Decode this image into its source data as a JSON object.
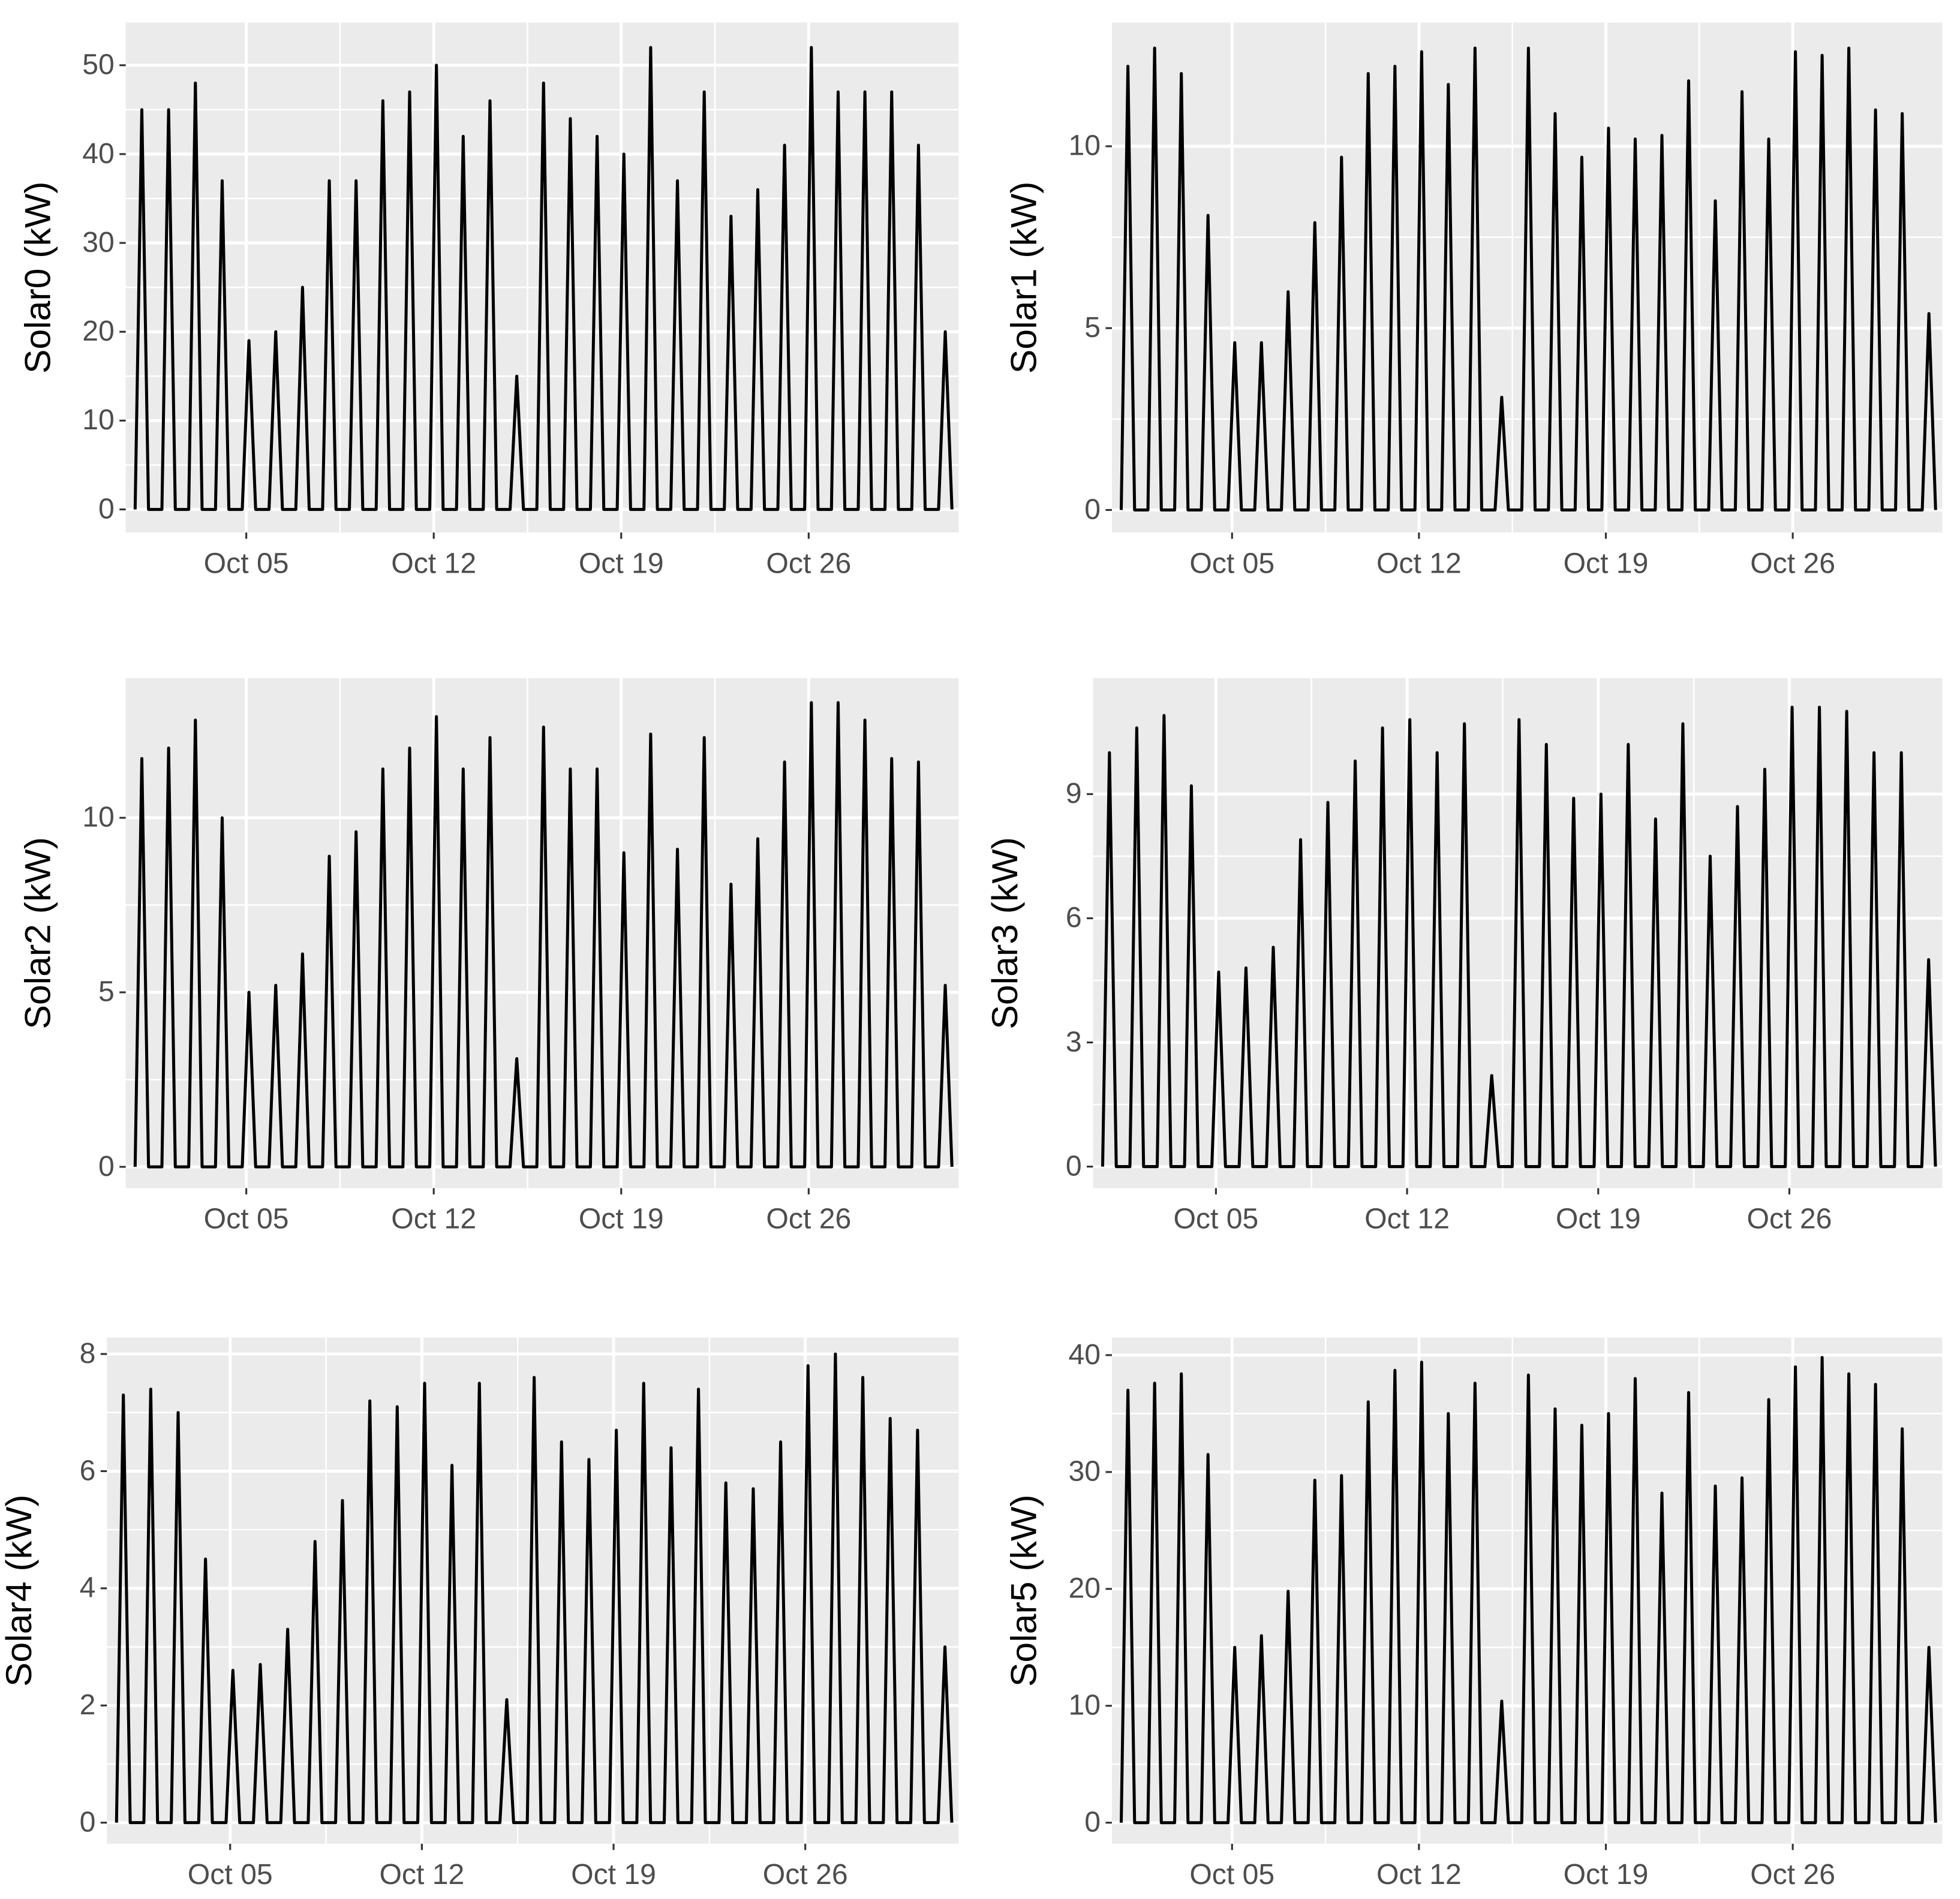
{
  "chart_data": [
    {
      "type": "line",
      "ylabel": "Solar0 (kW)",
      "color": "#000000",
      "grid": true,
      "xlim": [
        0.5,
        31.6
      ],
      "xticks": [
        {
          "value": 5,
          "label": "Oct 05"
        },
        {
          "value": 12,
          "label": "Oct 12"
        },
        {
          "value": 19,
          "label": "Oct 19"
        },
        {
          "value": 26,
          "label": "Oct 26"
        }
      ],
      "ylim": [
        -2.6,
        54.8
      ],
      "yticks": [
        0,
        10,
        20,
        30,
        40,
        50
      ],
      "x": [
        0.85,
        1.1,
        1.35,
        1.85,
        2.1,
        2.35,
        2.85,
        3.1,
        3.35,
        3.85,
        4.1,
        4.35,
        4.85,
        5.1,
        5.35,
        5.85,
        6.1,
        6.35,
        6.85,
        7.1,
        7.35,
        7.85,
        8.1,
        8.35,
        8.85,
        9.1,
        9.35,
        9.85,
        10.1,
        10.35,
        10.85,
        11.1,
        11.35,
        11.85,
        12.1,
        12.35,
        12.85,
        13.1,
        13.35,
        13.85,
        14.1,
        14.35,
        14.85,
        15.1,
        15.35,
        15.85,
        16.1,
        16.35,
        16.85,
        17.1,
        17.35,
        17.85,
        18.1,
        18.35,
        18.85,
        19.1,
        19.35,
        19.85,
        20.1,
        20.35,
        20.85,
        21.1,
        21.35,
        21.85,
        22.1,
        22.35,
        22.85,
        23.1,
        23.35,
        23.85,
        24.1,
        24.35,
        24.85,
        25.1,
        25.35,
        25.85,
        26.1,
        26.35,
        26.85,
        27.1,
        27.35,
        27.85,
        28.1,
        28.35,
        28.85,
        29.1,
        29.35,
        29.85,
        30.1,
        30.35,
        30.85,
        31.1,
        31.35
      ],
      "values": [
        0,
        45,
        0,
        0,
        45,
        0,
        0,
        48,
        0,
        0,
        37,
        0,
        0,
        19,
        0,
        0,
        20,
        0,
        0,
        25,
        0,
        0,
        37,
        0,
        0,
        37,
        0,
        0,
        46,
        0,
        0,
        47,
        0,
        0,
        50,
        0,
        0,
        42,
        0,
        0,
        46,
        0,
        0,
        15,
        0,
        0,
        48,
        0,
        0,
        44,
        0,
        0,
        42,
        0,
        0,
        40,
        0,
        0,
        52,
        0,
        0,
        37,
        0,
        0,
        47,
        0,
        0,
        33,
        0,
        0,
        36,
        0,
        0,
        41,
        0,
        0,
        52,
        0,
        0,
        47,
        0,
        0,
        47,
        0,
        0,
        47,
        0,
        0,
        41,
        0,
        0,
        20,
        0
      ]
    },
    {
      "type": "line",
      "ylabel": "Solar1 (kW)",
      "color": "#000000",
      "grid": true,
      "xlim": [
        0.5,
        31.6
      ],
      "xticks": [
        {
          "value": 5,
          "label": "Oct 05"
        },
        {
          "value": 12,
          "label": "Oct 12"
        },
        {
          "value": 19,
          "label": "Oct 19"
        },
        {
          "value": 26,
          "label": "Oct 26"
        }
      ],
      "ylim": [
        -0.62,
        13.4
      ],
      "yticks": [
        0,
        5,
        10
      ],
      "x": [
        0.85,
        1.1,
        1.35,
        1.85,
        2.1,
        2.35,
        2.85,
        3.1,
        3.35,
        3.85,
        4.1,
        4.35,
        4.85,
        5.1,
        5.35,
        5.85,
        6.1,
        6.35,
        6.85,
        7.1,
        7.35,
        7.85,
        8.1,
        8.35,
        8.85,
        9.1,
        9.35,
        9.85,
        10.1,
        10.35,
        10.85,
        11.1,
        11.35,
        11.85,
        12.1,
        12.35,
        12.85,
        13.1,
        13.35,
        13.85,
        14.1,
        14.35,
        14.85,
        15.1,
        15.35,
        15.85,
        16.1,
        16.35,
        16.85,
        17.1,
        17.35,
        17.85,
        18.1,
        18.35,
        18.85,
        19.1,
        19.35,
        19.85,
        20.1,
        20.35,
        20.85,
        21.1,
        21.35,
        21.85,
        22.1,
        22.35,
        22.85,
        23.1,
        23.35,
        23.85,
        24.1,
        24.35,
        24.85,
        25.1,
        25.35,
        25.85,
        26.1,
        26.35,
        26.85,
        27.1,
        27.35,
        27.85,
        28.1,
        28.35,
        28.85,
        29.1,
        29.35,
        29.85,
        30.1,
        30.35,
        30.85,
        31.1,
        31.35
      ],
      "values": [
        0,
        12.2,
        0,
        0,
        12.7,
        0,
        0,
        12.0,
        0,
        0,
        8.1,
        0,
        0,
        4.6,
        0,
        0,
        4.6,
        0,
        0,
        6.0,
        0,
        0,
        7.9,
        0,
        0,
        9.7,
        0,
        0,
        12.0,
        0,
        0,
        12.2,
        0,
        0,
        12.6,
        0,
        0,
        11.7,
        0,
        0,
        12.7,
        0,
        0,
        3.1,
        0,
        0,
        12.7,
        0,
        0,
        10.9,
        0,
        0,
        9.7,
        0,
        0,
        10.5,
        0,
        0,
        10.2,
        0,
        0,
        10.3,
        0,
        0,
        11.8,
        0,
        0,
        8.5,
        0,
        0,
        11.5,
        0,
        0,
        10.2,
        0,
        0,
        12.6,
        0,
        0,
        12.5,
        0,
        0,
        12.7,
        0,
        0,
        11.0,
        0,
        0,
        10.9,
        0,
        0,
        5.4,
        0
      ]
    },
    {
      "type": "line",
      "ylabel": "Solar2 (kW)",
      "color": "#000000",
      "grid": true,
      "xlim": [
        0.5,
        31.6
      ],
      "xticks": [
        {
          "value": 5,
          "label": "Oct 05"
        },
        {
          "value": 12,
          "label": "Oct 12"
        },
        {
          "value": 19,
          "label": "Oct 19"
        },
        {
          "value": 26,
          "label": "Oct 26"
        }
      ],
      "ylim": [
        -0.61,
        14.0
      ],
      "yticks": [
        0,
        5,
        10
      ],
      "x": [
        0.85,
        1.1,
        1.35,
        1.85,
        2.1,
        2.35,
        2.85,
        3.1,
        3.35,
        3.85,
        4.1,
        4.35,
        4.85,
        5.1,
        5.35,
        5.85,
        6.1,
        6.35,
        6.85,
        7.1,
        7.35,
        7.85,
        8.1,
        8.35,
        8.85,
        9.1,
        9.35,
        9.85,
        10.1,
        10.35,
        10.85,
        11.1,
        11.35,
        11.85,
        12.1,
        12.35,
        12.85,
        13.1,
        13.35,
        13.85,
        14.1,
        14.35,
        14.85,
        15.1,
        15.35,
        15.85,
        16.1,
        16.35,
        16.85,
        17.1,
        17.35,
        17.85,
        18.1,
        18.35,
        18.85,
        19.1,
        19.35,
        19.85,
        20.1,
        20.35,
        20.85,
        21.1,
        21.35,
        21.85,
        22.1,
        22.35,
        22.85,
        23.1,
        23.35,
        23.85,
        24.1,
        24.35,
        24.85,
        25.1,
        25.35,
        25.85,
        26.1,
        26.35,
        26.85,
        27.1,
        27.35,
        27.85,
        28.1,
        28.35,
        28.85,
        29.1,
        29.35,
        29.85,
        30.1,
        30.35,
        30.85,
        31.1,
        31.35
      ],
      "values": [
        0,
        11.7,
        0,
        0,
        12.0,
        0,
        0,
        12.8,
        0,
        0,
        10.0,
        0,
        0,
        5.0,
        0,
        0,
        5.2,
        0,
        0,
        6.1,
        0,
        0,
        8.9,
        0,
        0,
        9.6,
        0,
        0,
        11.4,
        0,
        0,
        12.0,
        0,
        0,
        12.9,
        0,
        0,
        11.4,
        0,
        0,
        12.3,
        0,
        0,
        3.1,
        0,
        0,
        12.6,
        0,
        0,
        11.4,
        0,
        0,
        11.4,
        0,
        0,
        9.0,
        0,
        0,
        12.4,
        0,
        0,
        9.1,
        0,
        0,
        12.3,
        0,
        0,
        8.1,
        0,
        0,
        9.4,
        0,
        0,
        11.6,
        0,
        0,
        13.3,
        0,
        0,
        13.3,
        0,
        0,
        12.8,
        0,
        0,
        11.7,
        0,
        0,
        11.6,
        0,
        0,
        5.2,
        0
      ]
    },
    {
      "type": "line",
      "ylabel": "Solar3 (kW)",
      "color": "#000000",
      "grid": true,
      "xlim": [
        0.5,
        31.6
      ],
      "xticks": [
        {
          "value": 5,
          "label": "Oct 05"
        },
        {
          "value": 12,
          "label": "Oct 12"
        },
        {
          "value": 19,
          "label": "Oct 19"
        },
        {
          "value": 26,
          "label": "Oct 26"
        }
      ],
      "ylim": [
        -0.52,
        11.8
      ],
      "yticks": [
        0,
        3,
        6,
        9
      ],
      "x": [
        0.85,
        1.1,
        1.35,
        1.85,
        2.1,
        2.35,
        2.85,
        3.1,
        3.35,
        3.85,
        4.1,
        4.35,
        4.85,
        5.1,
        5.35,
        5.85,
        6.1,
        6.35,
        6.85,
        7.1,
        7.35,
        7.85,
        8.1,
        8.35,
        8.85,
        9.1,
        9.35,
        9.85,
        10.1,
        10.35,
        10.85,
        11.1,
        11.35,
        11.85,
        12.1,
        12.35,
        12.85,
        13.1,
        13.35,
        13.85,
        14.1,
        14.35,
        14.85,
        15.1,
        15.35,
        15.85,
        16.1,
        16.35,
        16.85,
        17.1,
        17.35,
        17.85,
        18.1,
        18.35,
        18.85,
        19.1,
        19.35,
        19.85,
        20.1,
        20.35,
        20.85,
        21.1,
        21.35,
        21.85,
        22.1,
        22.35,
        22.85,
        23.1,
        23.35,
        23.85,
        24.1,
        24.35,
        24.85,
        25.1,
        25.35,
        25.85,
        26.1,
        26.35,
        26.85,
        27.1,
        27.35,
        27.85,
        28.1,
        28.35,
        28.85,
        29.1,
        29.35,
        29.85,
        30.1,
        30.35,
        30.85,
        31.1,
        31.35
      ],
      "values": [
        0,
        10.0,
        0,
        0,
        10.6,
        0,
        0,
        10.9,
        0,
        0,
        9.2,
        0,
        0,
        4.7,
        0,
        0,
        4.8,
        0,
        0,
        5.3,
        0,
        0,
        7.9,
        0,
        0,
        8.8,
        0,
        0,
        9.8,
        0,
        0,
        10.6,
        0,
        0,
        10.8,
        0,
        0,
        10.0,
        0,
        0,
        10.7,
        0,
        0,
        2.2,
        0,
        0,
        10.8,
        0,
        0,
        10.2,
        0,
        0,
        8.9,
        0,
        0,
        9.0,
        0,
        0,
        10.2,
        0,
        0,
        8.4,
        0,
        0,
        10.7,
        0,
        0,
        7.5,
        0,
        0,
        8.7,
        0,
        0,
        9.6,
        0,
        0,
        11.1,
        0,
        0,
        11.1,
        0,
        0,
        11.0,
        0,
        0,
        10.0,
        0,
        0,
        10.0,
        0,
        0,
        5.0,
        0
      ]
    },
    {
      "type": "line",
      "ylabel": "Solar4 (kW)",
      "color": "#000000",
      "grid": true,
      "xlim": [
        0.5,
        31.6
      ],
      "xticks": [
        {
          "value": 5,
          "label": "Oct 05"
        },
        {
          "value": 12,
          "label": "Oct 12"
        },
        {
          "value": 19,
          "label": "Oct 19"
        },
        {
          "value": 26,
          "label": "Oct 26"
        }
      ],
      "ylim": [
        -0.36,
        8.28
      ],
      "yticks": [
        0,
        2,
        4,
        6,
        8
      ],
      "x": [
        0.85,
        1.1,
        1.35,
        1.85,
        2.1,
        2.35,
        2.85,
        3.1,
        3.35,
        3.85,
        4.1,
        4.35,
        4.85,
        5.1,
        5.35,
        5.85,
        6.1,
        6.35,
        6.85,
        7.1,
        7.35,
        7.85,
        8.1,
        8.35,
        8.85,
        9.1,
        9.35,
        9.85,
        10.1,
        10.35,
        10.85,
        11.1,
        11.35,
        11.85,
        12.1,
        12.35,
        12.85,
        13.1,
        13.35,
        13.85,
        14.1,
        14.35,
        14.85,
        15.1,
        15.35,
        15.85,
        16.1,
        16.35,
        16.85,
        17.1,
        17.35,
        17.85,
        18.1,
        18.35,
        18.85,
        19.1,
        19.35,
        19.85,
        20.1,
        20.35,
        20.85,
        21.1,
        21.35,
        21.85,
        22.1,
        22.35,
        22.85,
        23.1,
        23.35,
        23.85,
        24.1,
        24.35,
        24.85,
        25.1,
        25.35,
        25.85,
        26.1,
        26.35,
        26.85,
        27.1,
        27.35,
        27.85,
        28.1,
        28.35,
        28.85,
        29.1,
        29.35,
        29.85,
        30.1,
        30.35,
        30.85,
        31.1,
        31.35
      ],
      "values": [
        0,
        7.3,
        0,
        0,
        7.4,
        0,
        0,
        7.0,
        0,
        0,
        4.5,
        0,
        0,
        2.6,
        0,
        0,
        2.7,
        0,
        0,
        3.3,
        0,
        0,
        4.8,
        0,
        0,
        5.5,
        0,
        0,
        7.2,
        0,
        0,
        7.1,
        0,
        0,
        7.5,
        0,
        0,
        6.1,
        0,
        0,
        7.5,
        0,
        0,
        2.1,
        0,
        0,
        7.6,
        0,
        0,
        6.5,
        0,
        0,
        6.2,
        0,
        0,
        6.7,
        0,
        0,
        7.5,
        0,
        0,
        6.4,
        0,
        0,
        7.4,
        0,
        0,
        5.8,
        0,
        0,
        5.7,
        0,
        0,
        6.5,
        0,
        0,
        7.8,
        0,
        0,
        8.0,
        0,
        0,
        7.6,
        0,
        0,
        6.9,
        0,
        0,
        6.7,
        0,
        0,
        3.0,
        0
      ]
    },
    {
      "type": "line",
      "ylabel": "Solar5 (kW)",
      "color": "#000000",
      "grid": true,
      "xlim": [
        0.5,
        31.6
      ],
      "xticks": [
        {
          "value": 5,
          "label": "Oct 05"
        },
        {
          "value": 12,
          "label": "Oct 12"
        },
        {
          "value": 19,
          "label": "Oct 19"
        },
        {
          "value": 26,
          "label": "Oct 26"
        }
      ],
      "ylim": [
        -1.8,
        41.5
      ],
      "yticks": [
        0,
        10,
        20,
        30,
        40
      ],
      "x": [
        0.85,
        1.1,
        1.35,
        1.85,
        2.1,
        2.35,
        2.85,
        3.1,
        3.35,
        3.85,
        4.1,
        4.35,
        4.85,
        5.1,
        5.35,
        5.85,
        6.1,
        6.35,
        6.85,
        7.1,
        7.35,
        7.85,
        8.1,
        8.35,
        8.85,
        9.1,
        9.35,
        9.85,
        10.1,
        10.35,
        10.85,
        11.1,
        11.35,
        11.85,
        12.1,
        12.35,
        12.85,
        13.1,
        13.35,
        13.85,
        14.1,
        14.35,
        14.85,
        15.1,
        15.35,
        15.85,
        16.1,
        16.35,
        16.85,
        17.1,
        17.35,
        17.85,
        18.1,
        18.35,
        18.85,
        19.1,
        19.35,
        19.85,
        20.1,
        20.35,
        20.85,
        21.1,
        21.35,
        21.85,
        22.1,
        22.35,
        22.85,
        23.1,
        23.35,
        23.85,
        24.1,
        24.35,
        24.85,
        25.1,
        25.35,
        25.85,
        26.1,
        26.35,
        26.85,
        27.1,
        27.35,
        27.85,
        28.1,
        28.35,
        28.85,
        29.1,
        29.35,
        29.85,
        30.1,
        30.35,
        30.85,
        31.1,
        31.35
      ],
      "values": [
        0,
        37,
        0,
        0,
        37.6,
        0,
        0,
        38.4,
        0,
        0,
        31.5,
        0,
        0,
        15,
        0,
        0,
        16,
        0,
        0,
        19.8,
        0,
        0,
        29.3,
        0,
        0,
        29.7,
        0,
        0,
        36,
        0,
        0,
        38.7,
        0,
        0,
        39.4,
        0,
        0,
        35,
        0,
        0,
        37.6,
        0,
        0,
        10.4,
        0,
        0,
        38.3,
        0,
        0,
        35.4,
        0,
        0,
        34,
        0,
        0,
        35,
        0,
        0,
        38,
        0,
        0,
        28.2,
        0,
        0,
        36.8,
        0,
        0,
        28.8,
        0,
        0,
        29.5,
        0,
        0,
        36.2,
        0,
        0,
        39,
        0,
        0,
        39.8,
        0,
        0,
        38.4,
        0,
        0,
        37.5,
        0,
        0,
        33.7,
        0,
        0,
        15,
        0
      ]
    }
  ]
}
